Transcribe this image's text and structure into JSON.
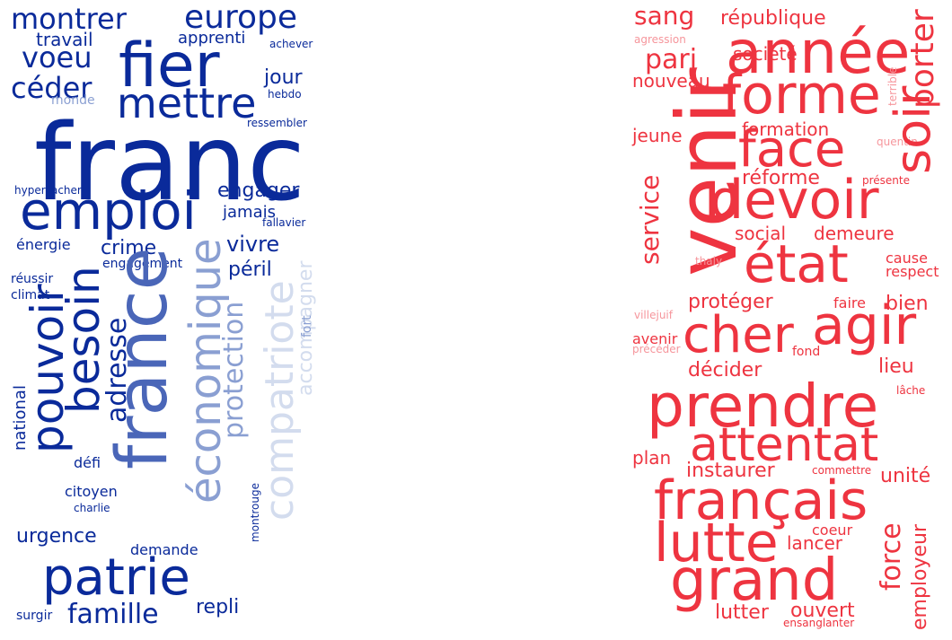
{
  "palette": {
    "blue_dark": "#0a2a9a",
    "blue_mid": "#4a66b8",
    "blue_soft": "#8a9fd2",
    "blue_pale": "#d3dcee",
    "red_bright": "#ee3440",
    "red_mid": "#f05a64",
    "red_soft": "#f6969c"
  },
  "left_cloud": {
    "name": "blue-word-cloud",
    "words": [
      {
        "text": "franc",
        "color": "blue_dark"
      },
      {
        "text": "fier",
        "color": "blue_dark"
      },
      {
        "text": "mettre",
        "color": "blue_dark"
      },
      {
        "text": "europe",
        "color": "blue_dark"
      },
      {
        "text": "montrer",
        "color": "blue_dark"
      },
      {
        "text": "voeu",
        "color": "blue_dark"
      },
      {
        "text": "céder",
        "color": "blue_dark"
      },
      {
        "text": "travail",
        "color": "blue_dark"
      },
      {
        "text": "apprenti",
        "color": "blue_dark"
      },
      {
        "text": "achever",
        "color": "blue_dark"
      },
      {
        "text": "jour",
        "color": "blue_dark"
      },
      {
        "text": "hebdo",
        "color": "blue_dark"
      },
      {
        "text": "monde",
        "color": "blue_soft"
      },
      {
        "text": "ressembler",
        "color": "blue_dark"
      },
      {
        "text": "emploi",
        "color": "blue_dark"
      },
      {
        "text": "engager",
        "color": "blue_dark"
      },
      {
        "text": "jamais",
        "color": "blue_dark"
      },
      {
        "text": "fallavier",
        "color": "blue_dark"
      },
      {
        "text": "hypercacher",
        "color": "blue_dark"
      },
      {
        "text": "énergie",
        "color": "blue_dark"
      },
      {
        "text": "crime",
        "color": "blue_dark"
      },
      {
        "text": "engagement",
        "color": "blue_dark"
      },
      {
        "text": "vivre",
        "color": "blue_dark"
      },
      {
        "text": "péril",
        "color": "blue_dark"
      },
      {
        "text": "réussir",
        "color": "blue_dark"
      },
      {
        "text": "climat",
        "color": "blue_dark"
      },
      {
        "text": "france",
        "color": "blue_mid"
      },
      {
        "text": "économique",
        "color": "blue_soft"
      },
      {
        "text": "compatriote",
        "color": "blue_pale"
      },
      {
        "text": "accompagner",
        "color": "blue_pale"
      },
      {
        "text": "besoin",
        "color": "blue_dark"
      },
      {
        "text": "pouvoir",
        "color": "blue_dark"
      },
      {
        "text": "adresse",
        "color": "blue_dark"
      },
      {
        "text": "protection",
        "color": "blue_soft"
      },
      {
        "text": "fort",
        "color": "blue_soft"
      },
      {
        "text": "national",
        "color": "blue_dark"
      },
      {
        "text": "défi",
        "color": "blue_dark"
      },
      {
        "text": "citoyen",
        "color": "blue_dark"
      },
      {
        "text": "charlie",
        "color": "blue_dark"
      },
      {
        "text": "montrouge",
        "color": "blue_dark"
      },
      {
        "text": "urgence",
        "color": "blue_dark"
      },
      {
        "text": "demande",
        "color": "blue_dark"
      },
      {
        "text": "patrie",
        "color": "blue_dark"
      },
      {
        "text": "famille",
        "color": "blue_dark"
      },
      {
        "text": "repli",
        "color": "blue_dark"
      },
      {
        "text": "surgir",
        "color": "blue_dark"
      }
    ]
  },
  "right_cloud": {
    "name": "red-word-cloud",
    "words": [
      {
        "text": "sang",
        "color": "red_bright"
      },
      {
        "text": "république",
        "color": "red_bright"
      },
      {
        "text": "année",
        "color": "red_bright"
      },
      {
        "text": "porter",
        "color": "red_bright"
      },
      {
        "text": "agression",
        "color": "red_soft"
      },
      {
        "text": "pari",
        "color": "red_bright"
      },
      {
        "text": "société",
        "color": "red_bright"
      },
      {
        "text": "forme",
        "color": "red_bright"
      },
      {
        "text": "nouveau",
        "color": "red_bright"
      },
      {
        "text": "terrible",
        "color": "red_soft"
      },
      {
        "text": "venir",
        "color": "red_bright"
      },
      {
        "text": "formation",
        "color": "red_bright"
      },
      {
        "text": "jeune",
        "color": "red_bright"
      },
      {
        "text": "face",
        "color": "red_bright"
      },
      {
        "text": "quentin",
        "color": "red_soft"
      },
      {
        "text": "soir",
        "color": "red_bright"
      },
      {
        "text": "réforme",
        "color": "red_bright"
      },
      {
        "text": "présente",
        "color": "red_bright"
      },
      {
        "text": "devoir",
        "color": "red_bright"
      },
      {
        "text": "service",
        "color": "red_bright"
      },
      {
        "text": "social",
        "color": "red_bright"
      },
      {
        "text": "demeure",
        "color": "red_bright"
      },
      {
        "text": "état",
        "color": "red_bright"
      },
      {
        "text": "cause",
        "color": "red_bright"
      },
      {
        "text": "respect",
        "color": "red_bright"
      },
      {
        "text": "thaly",
        "color": "red_soft"
      },
      {
        "text": "faire",
        "color": "red_bright"
      },
      {
        "text": "bien",
        "color": "red_bright"
      },
      {
        "text": "protéger",
        "color": "red_bright"
      },
      {
        "text": "villejuif",
        "color": "red_soft"
      },
      {
        "text": "agir",
        "color": "red_bright"
      },
      {
        "text": "cher",
        "color": "red_bright"
      },
      {
        "text": "avenir",
        "color": "red_bright"
      },
      {
        "text": "précéder",
        "color": "red_soft"
      },
      {
        "text": "fond",
        "color": "red_bright"
      },
      {
        "text": "lieu",
        "color": "red_bright"
      },
      {
        "text": "décider",
        "color": "red_bright"
      },
      {
        "text": "lâche",
        "color": "red_bright"
      },
      {
        "text": "prendre",
        "color": "red_bright"
      },
      {
        "text": "attentat",
        "color": "red_bright"
      },
      {
        "text": "plan",
        "color": "red_bright"
      },
      {
        "text": "instaurer",
        "color": "red_bright"
      },
      {
        "text": "commettre",
        "color": "red_bright"
      },
      {
        "text": "unité",
        "color": "red_bright"
      },
      {
        "text": "français",
        "color": "red_bright"
      },
      {
        "text": "lutte",
        "color": "red_bright"
      },
      {
        "text": "lancer",
        "color": "red_bright"
      },
      {
        "text": "coeur",
        "color": "red_bright"
      },
      {
        "text": "force",
        "color": "red_bright"
      },
      {
        "text": "employeur",
        "color": "red_bright"
      },
      {
        "text": "grand",
        "color": "red_bright"
      },
      {
        "text": "ouvert",
        "color": "red_bright"
      },
      {
        "text": "lutter",
        "color": "red_bright"
      },
      {
        "text": "ensanglanter",
        "color": "red_bright"
      }
    ]
  }
}
